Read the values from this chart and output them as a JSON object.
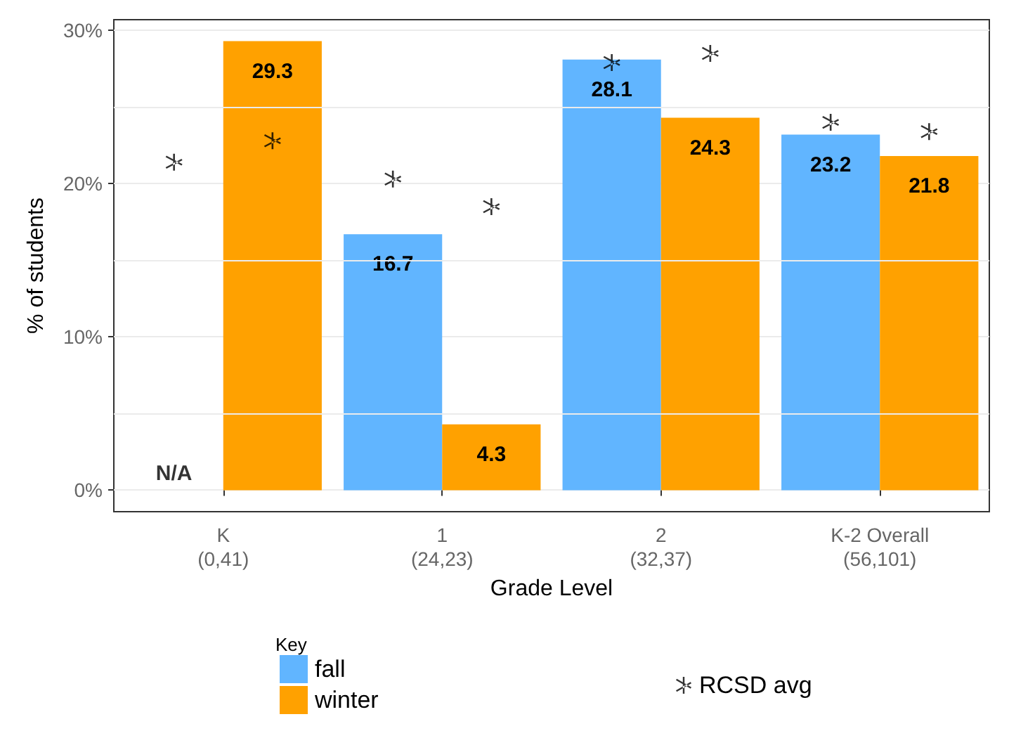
{
  "chart_data": {
    "type": "bar",
    "xlabel": "Grade Level",
    "ylabel": "% of students",
    "legend_title": "Key",
    "categories": [
      "K\n(0,41)",
      "1\n(24,23)",
      "2\n(32,37)",
      "K-2 Overall\n(56,101)"
    ],
    "series": [
      {
        "name": "fall",
        "color": "#61b5ff",
        "values": [
          null,
          16.7,
          28.1,
          23.2
        ],
        "value_labels": [
          "N/A",
          "16.7",
          "28.1",
          "23.2"
        ]
      },
      {
        "name": "winter",
        "color": "#ffa100",
        "values": [
          29.3,
          4.3,
          24.3,
          21.8
        ],
        "value_labels": [
          "29.3",
          "4.3",
          "24.3",
          "21.8"
        ]
      },
      {
        "name": "RCSD avg",
        "type": "scatter",
        "color": "#000000",
        "values": [
          21.4,
          20.3,
          27.9,
          24.0
        ]
      },
      {
        "type": "scatter",
        "color": "#000000",
        "values": [
          22.8,
          18.5,
          28.5,
          23.4
        ]
      }
    ],
    "ylim": [
      -1.4,
      30.7
    ],
    "yticks": [
      {
        "value": 0,
        "label": "0%"
      },
      {
        "value": 5,
        "label": null
      },
      {
        "value": 10,
        "label": "10%"
      },
      {
        "value": 15,
        "label": null
      },
      {
        "value": 20,
        "label": "20%"
      },
      {
        "value": 25,
        "label": null
      },
      {
        "value": 30,
        "label": "30%"
      }
    ],
    "grid": "y",
    "legend": "bottom",
    "marker": "cross"
  }
}
